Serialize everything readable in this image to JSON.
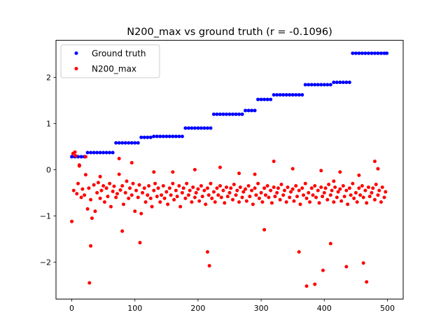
{
  "chart_data": {
    "type": "scatter",
    "title": "N200_max vs ground truth (r = -0.1096)",
    "xlabel": "",
    "ylabel": "",
    "xlim": [
      -25,
      525
    ],
    "ylim": [
      -2.8,
      2.8
    ],
    "x_ticks": [
      0,
      100,
      200,
      300,
      400,
      500
    ],
    "y_ticks": [
      -2,
      -1,
      0,
      1,
      2
    ],
    "legend": {
      "placement": "top-left"
    },
    "series": [
      {
        "name": "Ground truth",
        "color": "#0000ff",
        "x": [
          0,
          5,
          10,
          15,
          20,
          25,
          30,
          35,
          40,
          45,
          50,
          55,
          60,
          65,
          70,
          75,
          80,
          85,
          90,
          95,
          100,
          105,
          110,
          115,
          120,
          125,
          130,
          135,
          140,
          145,
          150,
          155,
          160,
          165,
          170,
          175,
          180,
          185,
          190,
          195,
          200,
          205,
          210,
          215,
          220,
          225,
          230,
          235,
          240,
          245,
          250,
          255,
          260,
          265,
          270,
          275,
          280,
          285,
          290,
          295,
          300,
          305,
          310,
          315,
          320,
          325,
          330,
          335,
          340,
          345,
          350,
          355,
          360,
          365,
          370,
          375,
          380,
          385,
          390,
          395,
          400,
          405,
          410,
          415,
          420,
          425,
          430,
          435,
          440,
          445,
          450,
          455,
          460,
          465,
          470,
          475,
          480,
          485,
          490,
          495,
          499
        ],
        "y": [
          0.28,
          0.28,
          0.28,
          0.28,
          0.28,
          0.37,
          0.37,
          0.37,
          0.37,
          0.37,
          0.37,
          0.37,
          0.37,
          0.37,
          0.58,
          0.58,
          0.58,
          0.58,
          0.58,
          0.58,
          0.58,
          0.58,
          0.7,
          0.7,
          0.7,
          0.7,
          0.72,
          0.72,
          0.72,
          0.72,
          0.72,
          0.72,
          0.72,
          0.72,
          0.72,
          0.72,
          0.9,
          0.9,
          0.9,
          0.9,
          0.9,
          0.9,
          0.9,
          0.9,
          0.9,
          1.2,
          1.2,
          1.2,
          1.2,
          1.2,
          1.2,
          1.2,
          1.2,
          1.2,
          1.2,
          1.28,
          1.28,
          1.28,
          1.28,
          1.52,
          1.52,
          1.52,
          1.52,
          1.52,
          1.62,
          1.62,
          1.62,
          1.62,
          1.62,
          1.62,
          1.62,
          1.62,
          1.62,
          1.62,
          1.84,
          1.84,
          1.84,
          1.84,
          1.84,
          1.84,
          1.84,
          1.84,
          1.84,
          1.89,
          1.89,
          1.89,
          1.89,
          1.89,
          1.89,
          2.52,
          2.52,
          2.52,
          2.52,
          2.52,
          2.52,
          2.52,
          2.52,
          2.52,
          2.52,
          2.52,
          2.52
        ]
      },
      {
        "name": "N200_max",
        "color": "#ff0000",
        "x": [
          0,
          3,
          5,
          8,
          10,
          12,
          15,
          17,
          20,
          22,
          25,
          27,
          30,
          32,
          35,
          37,
          40,
          42,
          45,
          47,
          50,
          52,
          55,
          57,
          60,
          62,
          65,
          67,
          70,
          72,
          75,
          77,
          80,
          82,
          85,
          87,
          90,
          92,
          95,
          97,
          100,
          102,
          105,
          107,
          110,
          112,
          115,
          117,
          120,
          122,
          125,
          127,
          130,
          132,
          135,
          137,
          140,
          142,
          145,
          147,
          150,
          152,
          155,
          157,
          160,
          162,
          165,
          167,
          170,
          172,
          175,
          177,
          180,
          182,
          185,
          187,
          190,
          192,
          195,
          197,
          200,
          202,
          205,
          207,
          210,
          212,
          215,
          217,
          220,
          222,
          225,
          227,
          230,
          232,
          235,
          237,
          240,
          242,
          245,
          247,
          250,
          252,
          255,
          257,
          260,
          262,
          265,
          267,
          270,
          272,
          275,
          277,
          280,
          282,
          285,
          287,
          290,
          292,
          295,
          297,
          300,
          302,
          305,
          307,
          310,
          312,
          315,
          317,
          320,
          322,
          325,
          327,
          330,
          332,
          335,
          337,
          340,
          342,
          345,
          347,
          350,
          352,
          355,
          357,
          360,
          362,
          365,
          367,
          370,
          372,
          375,
          377,
          380,
          382,
          385,
          387,
          390,
          392,
          395,
          397,
          400,
          402,
          405,
          407,
          410,
          412,
          415,
          417,
          420,
          422,
          425,
          427,
          430,
          432,
          435,
          437,
          440,
          442,
          445,
          447,
          450,
          452,
          455,
          457,
          460,
          462,
          465,
          467,
          470,
          472,
          475,
          477,
          480,
          482,
          485,
          487,
          490,
          492,
          495,
          497,
          2,
          28,
          30,
          80,
          108,
          215,
          218,
          305,
          360,
          372,
          385,
          398,
          410,
          435,
          462,
          467,
          12,
          320,
          415,
          480,
          6,
          22,
          45,
          75,
          95,
          130,
          160,
          195,
          235,
          265,
          290,
          350,
          395,
          425,
          455,
          485
        ],
        "y": [
          -1.12,
          -0.45,
          0.38,
          -0.52,
          -0.3,
          0.1,
          -0.6,
          -0.42,
          -0.55,
          -0.11,
          -0.85,
          -0.4,
          -0.65,
          -1.05,
          -0.33,
          -0.9,
          -0.5,
          -0.28,
          -0.62,
          -0.45,
          -0.35,
          -0.7,
          -0.4,
          -0.58,
          -0.3,
          -0.8,
          -0.47,
          -0.36,
          -0.6,
          -0.52,
          0.24,
          -0.44,
          -0.35,
          -0.75,
          -0.5,
          -0.25,
          -0.62,
          -0.4,
          -0.55,
          -0.3,
          -0.9,
          -0.45,
          -0.6,
          -0.33,
          -0.95,
          -0.5,
          -0.4,
          -0.7,
          -0.55,
          -0.35,
          -0.62,
          -0.8,
          -0.45,
          -0.3,
          -0.58,
          -0.4,
          -0.7,
          -0.55,
          -0.35,
          -0.62,
          -0.48,
          -0.75,
          -0.4,
          -0.55,
          -0.3,
          -0.65,
          -0.45,
          -0.58,
          -0.35,
          -0.8,
          -0.5,
          -0.4,
          -0.62,
          -0.3,
          -0.55,
          -0.45,
          -0.7,
          -0.38,
          -0.6,
          -0.5,
          -0.42,
          -0.68,
          -0.35,
          -0.58,
          -0.45,
          -0.75,
          -0.4,
          -0.55,
          -0.3,
          -0.62,
          -0.48,
          -0.7,
          -0.4,
          -0.55,
          -0.35,
          -0.6,
          -0.45,
          -0.72,
          -0.38,
          -0.58,
          -0.5,
          -0.4,
          -0.65,
          -0.32,
          -0.55,
          -0.45,
          -0.7,
          -0.38,
          -0.6,
          -0.48,
          -0.42,
          -0.68,
          -0.35,
          -0.58,
          -0.45,
          -0.75,
          -0.4,
          -0.55,
          -0.3,
          -0.62,
          -0.5,
          -0.7,
          -0.4,
          -0.55,
          -0.35,
          -0.6,
          -0.45,
          -0.72,
          -0.38,
          -0.58,
          -0.5,
          -0.4,
          -0.65,
          -0.32,
          -0.55,
          -0.45,
          -0.7,
          -0.38,
          -0.6,
          -0.48,
          -0.42,
          -0.68,
          -0.35,
          -0.58,
          -0.45,
          -0.75,
          -0.4,
          -0.55,
          -0.3,
          -0.62,
          -0.5,
          -0.7,
          -0.4,
          -0.55,
          -0.35,
          -0.6,
          -0.45,
          -0.72,
          -0.38,
          -0.58,
          -0.5,
          -0.4,
          -0.65,
          -0.32,
          -0.55,
          -0.45,
          -0.7,
          -0.38,
          -0.6,
          -0.48,
          -0.42,
          -0.68,
          -0.35,
          -0.58,
          -0.45,
          -0.75,
          -0.4,
          -0.55,
          -0.3,
          -0.62,
          -0.5,
          -0.7,
          -0.4,
          -0.55,
          -0.35,
          -0.6,
          -0.45,
          -0.72,
          -0.38,
          -0.58,
          -0.5,
          -0.4,
          -0.65,
          -0.32,
          -0.55,
          -0.45,
          -0.7,
          -0.38,
          -0.6,
          -0.48,
          0.35,
          -2.45,
          -1.65,
          -1.33,
          -1.58,
          -1.78,
          -2.08,
          -1.3,
          -1.78,
          -2.52,
          -2.48,
          -2.18,
          -1.6,
          -2.1,
          -2.02,
          -2.43,
          0.08,
          0.18,
          -0.25,
          0.18,
          0.3,
          0.28,
          -0.15,
          -0.1,
          0.15,
          -0.05,
          -0.05,
          0.0,
          0.05,
          -0.08,
          -0.1,
          0.02,
          -0.02,
          -0.05,
          -0.12,
          0.02
        ]
      }
    ]
  }
}
